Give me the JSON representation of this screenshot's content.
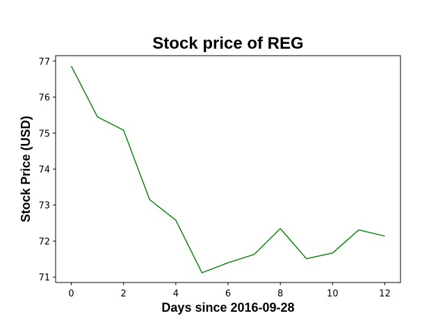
{
  "chart_data": {
    "type": "line",
    "title": "Stock price of REG",
    "xlabel": "Days since 2016-09-28",
    "ylabel": "Stock Price (USD)",
    "x": [
      0,
      1,
      2,
      3,
      4,
      5,
      6,
      7,
      8,
      9,
      10,
      11,
      12
    ],
    "series": [
      {
        "values": [
          76.86,
          75.45,
          75.08,
          73.15,
          72.58,
          71.12,
          71.4,
          71.63,
          72.35,
          71.51,
          71.67,
          72.31,
          72.14
        ],
        "color": "#008000"
      }
    ],
    "xlim": [
      -0.6,
      12.6
    ],
    "ylim": [
      70.85,
      77.15
    ],
    "xticks": [
      0,
      2,
      4,
      6,
      8,
      10,
      12
    ],
    "yticks": [
      71,
      72,
      73,
      74,
      75,
      76,
      77
    ],
    "grid": false,
    "legend": false
  }
}
